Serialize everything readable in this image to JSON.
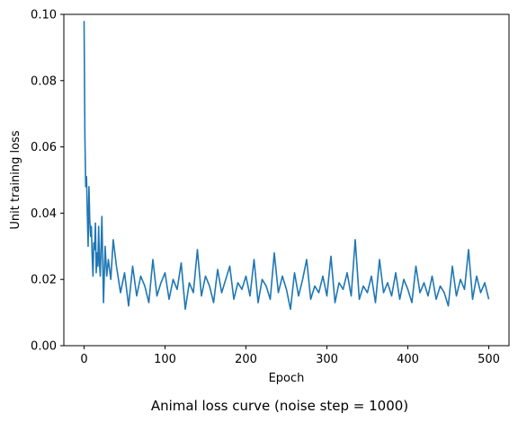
{
  "chart_data": {
    "type": "line",
    "title": "",
    "caption": "Animal loss curve (noise step = 1000)",
    "xlabel": "Epoch",
    "ylabel": "Unit training loss",
    "xlim": [
      -25,
      525
    ],
    "ylim": [
      0,
      0.1
    ],
    "xticks": [
      0,
      100,
      200,
      300,
      400,
      500
    ],
    "xtick_labels": [
      "0",
      "100",
      "200",
      "300",
      "400",
      "500"
    ],
    "yticks": [
      0,
      0.02,
      0.04,
      0.06,
      0.08,
      0.1
    ],
    "ytick_labels": [
      "0.00",
      "0.02",
      "0.04",
      "0.06",
      "0.08",
      "0.10"
    ],
    "grid": false,
    "legend": "none",
    "color": "#1f77b4",
    "series": [
      {
        "x": [
          0,
          1,
          2,
          3,
          4,
          5,
          6,
          7,
          8,
          9,
          10,
          11,
          12,
          13,
          14,
          15,
          16,
          17,
          18,
          19,
          20,
          22,
          24,
          26,
          28,
          30,
          33,
          36,
          40,
          45,
          50,
          55,
          60,
          65,
          70,
          75,
          80,
          85,
          90,
          95,
          100,
          105,
          110,
          115,
          120,
          125,
          130,
          135,
          140,
          145,
          150,
          155,
          160,
          165,
          170,
          175,
          180,
          185,
          190,
          195,
          200,
          205,
          210,
          215,
          220,
          225,
          230,
          235,
          240,
          245,
          250,
          255,
          260,
          265,
          270,
          275,
          280,
          285,
          290,
          295,
          300,
          305,
          310,
          315,
          320,
          325,
          330,
          335,
          340,
          345,
          350,
          355,
          360,
          365,
          370,
          375,
          380,
          385,
          390,
          395,
          400,
          405,
          410,
          415,
          420,
          425,
          430,
          435,
          440,
          445,
          450,
          455,
          460,
          465,
          470,
          475,
          480,
          485,
          490,
          495,
          500
        ],
        "y": [
          0.098,
          0.063,
          0.048,
          0.051,
          0.04,
          0.03,
          0.048,
          0.038,
          0.033,
          0.036,
          0.027,
          0.021,
          0.031,
          0.029,
          0.037,
          0.022,
          0.028,
          0.024,
          0.036,
          0.025,
          0.021,
          0.039,
          0.013,
          0.03,
          0.021,
          0.026,
          0.02,
          0.032,
          0.024,
          0.016,
          0.022,
          0.012,
          0.024,
          0.015,
          0.021,
          0.018,
          0.013,
          0.026,
          0.015,
          0.019,
          0.022,
          0.014,
          0.02,
          0.017,
          0.025,
          0.011,
          0.019,
          0.016,
          0.029,
          0.015,
          0.021,
          0.018,
          0.013,
          0.023,
          0.016,
          0.02,
          0.024,
          0.014,
          0.019,
          0.017,
          0.021,
          0.015,
          0.026,
          0.013,
          0.02,
          0.018,
          0.014,
          0.028,
          0.016,
          0.021,
          0.017,
          0.011,
          0.022,
          0.015,
          0.02,
          0.026,
          0.014,
          0.018,
          0.016,
          0.021,
          0.015,
          0.027,
          0.013,
          0.019,
          0.017,
          0.022,
          0.015,
          0.032,
          0.014,
          0.018,
          0.016,
          0.021,
          0.013,
          0.026,
          0.016,
          0.019,
          0.015,
          0.022,
          0.014,
          0.02,
          0.017,
          0.013,
          0.024,
          0.016,
          0.019,
          0.015,
          0.021,
          0.014,
          0.018,
          0.016,
          0.012,
          0.024,
          0.015,
          0.02,
          0.017,
          0.029,
          0.014,
          0.021,
          0.016,
          0.019,
          0.014
        ]
      }
    ]
  }
}
